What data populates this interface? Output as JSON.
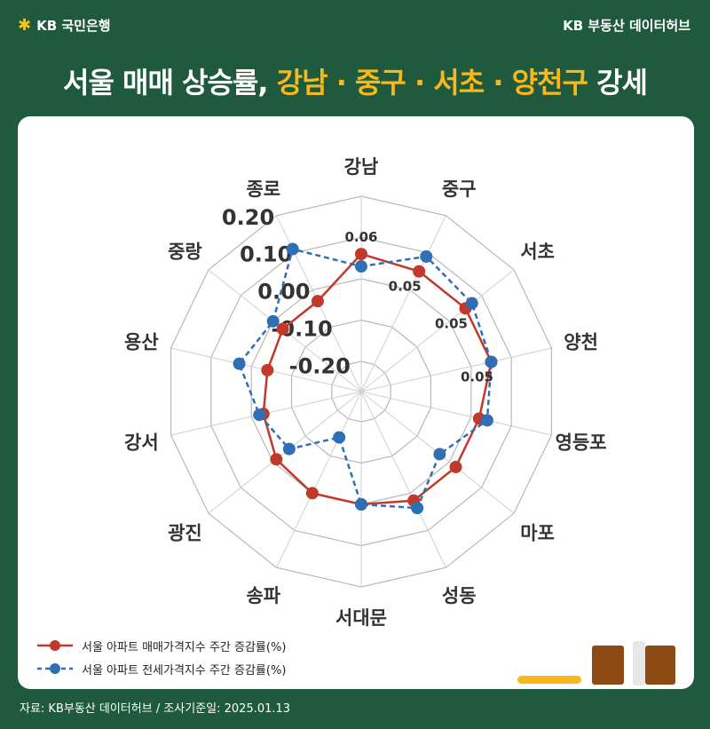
{
  "header": {
    "brand": "KB 국민은행",
    "hub": "KB 부동산  데이터허브",
    "title_prefix": "서울 매매 상승률, ",
    "title_highlight": "강남 · 중구 · 서초 · 양천구",
    "title_suffix": " 강세"
  },
  "chart_data": {
    "type": "radar",
    "categories": [
      "강남",
      "중구",
      "서초",
      "양천",
      "영등포",
      "마포",
      "성동",
      "서대문",
      "송파",
      "광진",
      "강서",
      "용산",
      "중랑",
      "종로"
    ],
    "rlim": [
      -0.2,
      0.2
    ],
    "rticks": [
      "0.20",
      "0.10",
      "0.00",
      "-0.10",
      "-0.20"
    ],
    "series": [
      {
        "name": "서울 아파트 매매가격지수 주간 증감률(%)",
        "color": "#c0392b",
        "style": "solid",
        "values": [
          0.06,
          0.05,
          0.05,
          0.05,
          0.02,
          0.02,
          0.02,
          0.0,
          0.0,
          -0.01,
          -0.03,
          -0.04,
          -0.03,
          -0.03
        ]
      },
      {
        "name": "서울 아파트 전세가격지수 주간 증감률(%)",
        "color": "#2f6fb5",
        "style": "dashed",
        "values": [
          0.03,
          0.09,
          0.07,
          0.05,
          0.04,
          -0.03,
          0.04,
          0.0,
          -0.15,
          -0.05,
          -0.02,
          0.03,
          0.0,
          0.11
        ]
      }
    ],
    "data_labels": [
      {
        "category": "강남",
        "text": "0.06"
      },
      {
        "category": "중구",
        "text": "0.05"
      },
      {
        "category": "서초",
        "text": "0.05"
      },
      {
        "category": "양천",
        "text": "0.05"
      }
    ],
    "grid": true,
    "legend_position": "bottom-left"
  },
  "source": "자료: KB부동산 데이터허브 / 조사기준일: 2025.01.13"
}
